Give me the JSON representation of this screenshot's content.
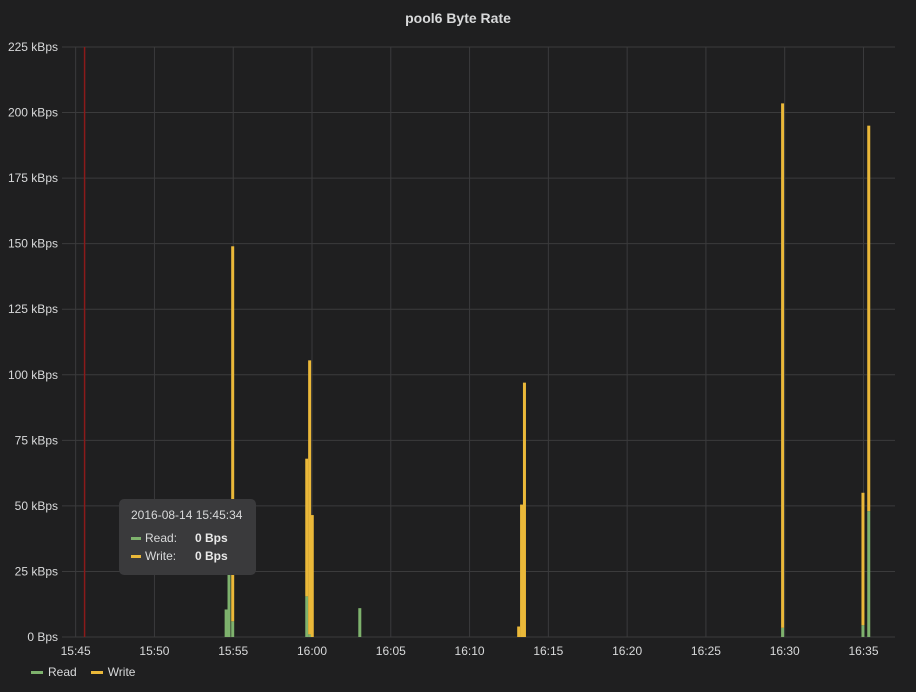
{
  "panel": {
    "title": "pool6 Byte Rate"
  },
  "colors": {
    "read": "#7eb26d",
    "write": "#eab839",
    "marker": "#8b1a1a"
  },
  "tooltip": {
    "time": "2016-08-14 15:45:34",
    "rows": [
      {
        "name": "Read:",
        "value": "0 Bps"
      },
      {
        "name": "Write:",
        "value": "0 Bps"
      }
    ]
  },
  "legend": [
    {
      "name": "Read"
    },
    {
      "name": "Write"
    }
  ],
  "chart_data": {
    "type": "bar",
    "stacked": true,
    "title": "pool6 Byte Rate",
    "xlabel": "",
    "ylabel": "",
    "ylim": [
      0,
      225
    ],
    "unit": "kBps",
    "grid": true,
    "legend_position": "bottom-left",
    "y_ticks": [
      "0 Bps",
      "25 kBps",
      "50 kBps",
      "75 kBps",
      "100 kBps",
      "125 kBps",
      "150 kBps",
      "175 kBps",
      "200 kBps",
      "225 kBps"
    ],
    "x_ticks": [
      "15:45",
      "15:50",
      "15:55",
      "16:00",
      "16:05",
      "16:10",
      "16:15",
      "16:20",
      "16:25",
      "16:30",
      "16:35"
    ],
    "x_range": [
      "15:45",
      "16:37"
    ],
    "marker_time": "15:45:34",
    "series": [
      {
        "name": "Read",
        "points": [
          {
            "t": "15:54:33",
            "v": 10.5
          },
          {
            "t": "15:54:44",
            "v": 24
          },
          {
            "t": "15:54:58",
            "v": 6
          },
          {
            "t": "15:59:40",
            "v": 15.5
          },
          {
            "t": "15:59:51",
            "v": 1
          },
          {
            "t": "16:03:02",
            "v": 11
          },
          {
            "t": "16:29:52",
            "v": 3.5
          },
          {
            "t": "16:34:58",
            "v": 4.5
          },
          {
            "t": "16:35:20",
            "v": 48
          }
        ]
      },
      {
        "name": "Write",
        "points": [
          {
            "t": "15:54:58",
            "v": 143
          },
          {
            "t": "15:59:40",
            "v": 52.5
          },
          {
            "t": "15:59:51",
            "v": 104.5
          },
          {
            "t": "16:00:01",
            "v": 46.5
          },
          {
            "t": "16:13:07",
            "v": 4
          },
          {
            "t": "16:13:18",
            "v": 50.5
          },
          {
            "t": "16:13:29",
            "v": 97
          },
          {
            "t": "16:29:52",
            "v": 200
          },
          {
            "t": "16:34:58",
            "v": 50.5
          },
          {
            "t": "16:35:20",
            "v": 147
          }
        ]
      }
    ]
  }
}
